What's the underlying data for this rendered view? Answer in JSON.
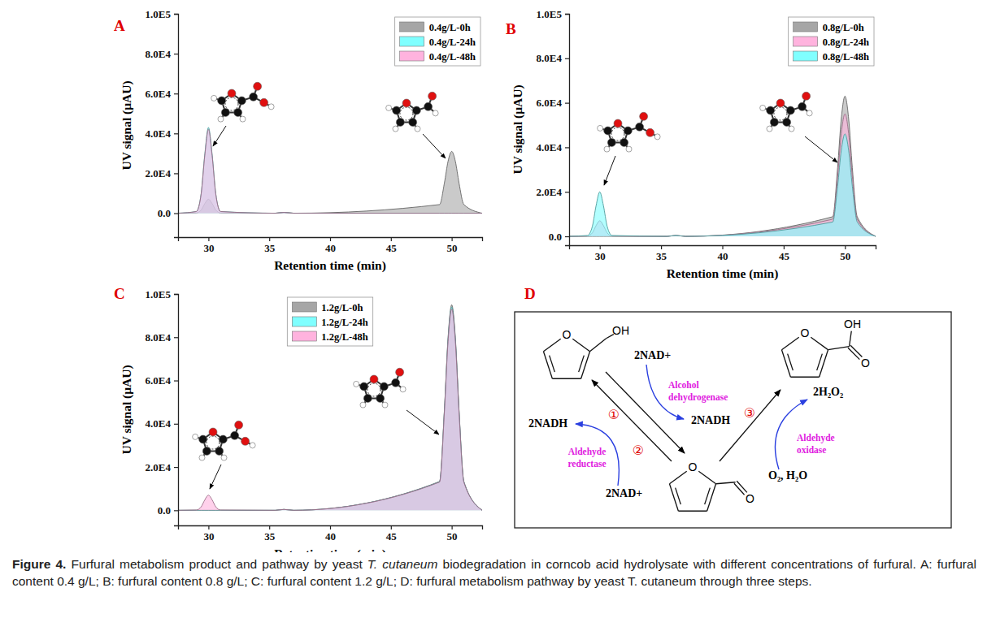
{
  "chart_data": [
    {
      "type": "area",
      "title": "A",
      "x_label": "Retention time (min)",
      "y_label": "UV signal (μAU)",
      "x": [
        27.5,
        29,
        29.4,
        29.7,
        30,
        30.3,
        30.6,
        31,
        35.5,
        36.2,
        37,
        49,
        49.4,
        49.7,
        50,
        50.3,
        50.6,
        51,
        52.5
      ],
      "series": [
        {
          "name": "0.4g/L-0h",
          "color": "#a6a6a6",
          "values": [
            0,
            140,
            1610,
            4830,
            7000,
            4830,
            1610,
            140,
            0,
            400,
            0,
            4340,
            15190,
            26040,
            31000,
            26040,
            15190,
            4340,
            0
          ]
        },
        {
          "name": "0.4g/L-24h",
          "color": "#80ffff",
          "values": [
            0,
            860,
            9890,
            29670,
            43000,
            29670,
            9890,
            860,
            0,
            400,
            0,
            0,
            0,
            0,
            0,
            0,
            0,
            0,
            0
          ]
        },
        {
          "name": "0.4g/L-48h",
          "color": "#ffb3de",
          "values": [
            0,
            840,
            9660,
            28980,
            42000,
            28980,
            9660,
            840,
            0,
            400,
            0,
            0,
            0,
            0,
            0,
            0,
            0,
            0,
            0
          ]
        }
      ],
      "xlim": [
        27.5,
        52.5
      ],
      "xticks": [
        30,
        35,
        40,
        45,
        50
      ],
      "ylim": [
        -12000,
        100000
      ],
      "yticks": [
        {
          "value": 0,
          "label": "0.0"
        },
        {
          "value": 20000,
          "label": "2.0E4"
        },
        {
          "value": 40000,
          "label": "4.0E4"
        },
        {
          "value": 60000,
          "label": "6.0E4"
        },
        {
          "value": 80000,
          "label": "8.0E4"
        },
        {
          "value": 100000,
          "label": "1.0E5"
        }
      ],
      "legend": "upper right"
    },
    {
      "type": "area",
      "title": "B",
      "x_label": "Retention time (min)",
      "y_label": "UV signal (μAU)",
      "x": [
        27.5,
        29,
        29.4,
        29.7,
        30,
        30.3,
        30.6,
        31,
        35.5,
        36.2,
        37,
        49,
        49.4,
        49.7,
        50,
        50.3,
        50.6,
        51,
        52.5
      ],
      "series": [
        {
          "name": "0.8g/L-0h",
          "color": "#a6a6a6",
          "values": [
            0,
            0,
            0,
            0,
            0,
            0,
            0,
            0,
            0,
            400,
            0,
            8820,
            30870,
            52920,
            63000,
            52920,
            30870,
            8820,
            0
          ]
        },
        {
          "name": "0.8g/L-24h",
          "color": "#ffb3de",
          "values": [
            0,
            140,
            1610,
            4830,
            7000,
            4830,
            1610,
            140,
            0,
            400,
            0,
            7700,
            26950,
            46200,
            55000,
            46200,
            26950,
            7700,
            0
          ]
        },
        {
          "name": "0.8g/L-48h",
          "color": "#80ffff",
          "values": [
            0,
            400,
            4600,
            13800,
            20000,
            13800,
            4600,
            400,
            0,
            400,
            0,
            6440,
            22540,
            38640,
            46000,
            38640,
            22540,
            6440,
            0
          ]
        }
      ],
      "xlim": [
        27.5,
        52.5
      ],
      "xticks": [
        30,
        35,
        40,
        45,
        50
      ],
      "ylim": [
        -4000,
        100000
      ],
      "yticks": [
        {
          "value": 0,
          "label": "0.0"
        },
        {
          "value": 20000,
          "label": "2.0E4"
        },
        {
          "value": 40000,
          "label": "4.0E4"
        },
        {
          "value": 60000,
          "label": "6.0E4"
        },
        {
          "value": 80000,
          "label": "8.0E4"
        },
        {
          "value": 100000,
          "label": "1.0E5"
        }
      ],
      "legend": "upper right"
    },
    {
      "type": "area",
      "title": "C",
      "x_label": "Retention time (min)",
      "y_label": "UV signal (μAU)",
      "x": [
        27.5,
        29,
        29.4,
        29.7,
        30,
        30.3,
        30.6,
        31,
        35.5,
        36.2,
        37,
        49,
        49.4,
        49.7,
        50,
        50.3,
        50.6,
        51,
        52.5
      ],
      "series": [
        {
          "name": "1.2g/L-0h",
          "color": "#a6a6a6",
          "values": [
            0,
            0,
            0,
            0,
            0,
            0,
            0,
            0,
            0,
            400,
            0,
            13300,
            46550,
            79800,
            95000,
            79800,
            46550,
            13300,
            0
          ]
        },
        {
          "name": "1.2g/L-24h",
          "color": "#80ffff",
          "values": [
            0,
            0,
            0,
            0,
            0,
            0,
            0,
            0,
            0,
            400,
            0,
            13160,
            46060,
            78960,
            94000,
            78960,
            46060,
            13160,
            0
          ]
        },
        {
          "name": "1.2g/L-48h",
          "color": "#ffb3de",
          "values": [
            0,
            140,
            1610,
            4830,
            7000,
            4830,
            1610,
            140,
            0,
            400,
            0,
            13020,
            45570,
            78120,
            93000,
            78120,
            45570,
            13020,
            0
          ]
        }
      ],
      "xlim": [
        27.5,
        52.5
      ],
      "xticks": [
        30,
        35,
        40,
        45,
        50
      ],
      "ylim": [
        -7000,
        100000
      ],
      "yticks": [
        {
          "value": 0,
          "label": "0.0"
        },
        {
          "value": 20000,
          "label": "2.0E4"
        },
        {
          "value": 40000,
          "label": "4.0E4"
        },
        {
          "value": 60000,
          "label": "6.0E4"
        },
        {
          "value": 80000,
          "label": "8.0E4"
        },
        {
          "value": 100000,
          "label": "1.0E5"
        }
      ],
      "legend": "upper center"
    }
  ],
  "diagram": {
    "title": "D",
    "structures": [
      {
        "atoms": [
          "O",
          "OH"
        ]
      },
      {
        "atoms": [
          "O",
          "OH",
          "O"
        ]
      },
      {
        "atoms": [
          "O",
          "O"
        ]
      }
    ],
    "labels": [
      "2NAD+",
      "2NADH",
      "2NADH",
      "2NAD+",
      "2H₂O₂",
      "O₂, H₂O"
    ],
    "enzymes": [
      [
        "Alcohol",
        "dehydrogenase"
      ],
      [
        "Aldehyde",
        "reductase"
      ],
      [
        "Aldehyde",
        "oxidase"
      ]
    ],
    "steps": [
      "①",
      "②",
      "③"
    ]
  },
  "caption": {
    "label": "Figure 4.",
    "parts": [
      " Furfural metabolism product and pathway by yeast ",
      "T. cutaneum",
      " biodegradation in corncob acid hydrolysate with different concentrations of furfural. A: furfural content 0.4 g/L; B: furfural content 0.8 g/L; C: furfural content 1.2 g/L; D: furfural metabolism pathway by yeast T. cutaneum through three steps."
    ]
  }
}
